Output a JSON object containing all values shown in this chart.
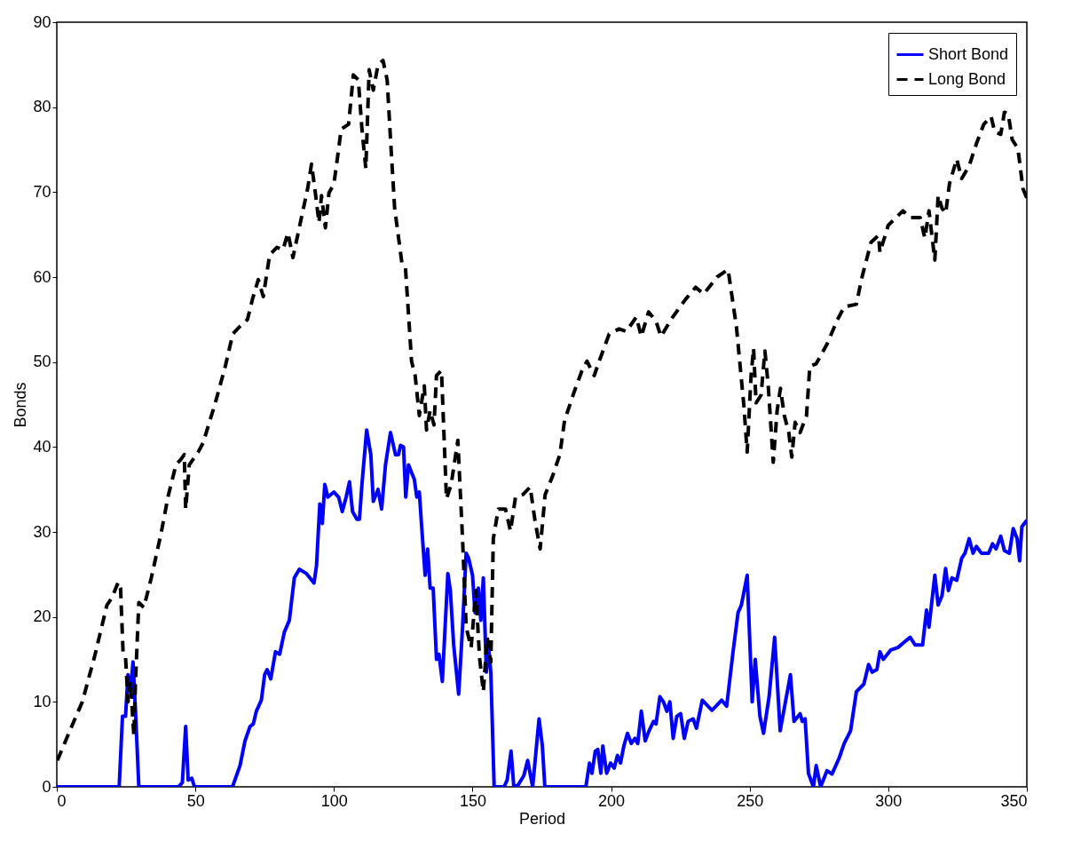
{
  "chart_data": {
    "type": "line",
    "xlabel": "Period",
    "ylabel": "Bonds",
    "xlim": [
      0,
      350
    ],
    "xticks": [
      0,
      50,
      100,
      150,
      200,
      250,
      300,
      350
    ],
    "ylim": [
      0,
      90
    ],
    "yticks": [
      0,
      10,
      20,
      30,
      40,
      50,
      60,
      70,
      80,
      90
    ],
    "grid": false,
    "legend": "top right",
    "series": [
      {
        "name": "Short Bond",
        "color": "#0000ff",
        "line_style": "solid",
        "x": [
          0,
          22.5,
          23.7,
          24.8,
          25.7,
          26.6,
          27.5,
          28.4,
          29.6,
          43.9,
          45.3,
          46.5,
          47.4,
          48.7,
          49.7,
          63.4,
          66.1,
          67.9,
          69.7,
          70.9,
          72,
          73.8,
          75,
          75.9,
          77.2,
          78.9,
          80.4,
          82.1,
          83.9,
          85.7,
          87.5,
          90.1,
          92.8,
          93.7,
          94.9,
          95.8,
          96.7,
          97.8,
          100,
          101.7,
          103,
          104.4,
          105.6,
          106.7,
          108.3,
          109.2,
          110.1,
          111.8,
          113.3,
          114.2,
          115.9,
          117.2,
          118.6,
          120.4,
          122.2,
          123.3,
          124,
          125.1,
          125.9,
          126.9,
          129,
          129.9,
          130.8,
          131.7,
          132.9,
          133.8,
          134.7,
          135.8,
          137,
          137.9,
          139.1,
          141.1,
          142,
          143.2,
          145,
          146.4,
          147.7,
          148.6,
          150,
          150.9,
          152.1,
          153,
          153.9,
          155,
          155.7,
          156.6,
          157.8,
          161.4,
          162.5,
          163.9,
          164.9,
          166.4,
          168.5,
          169.9,
          171.7,
          174,
          175.2,
          176.1,
          190.9,
          192.2,
          193.1,
          194.3,
          195.2,
          196.3,
          197,
          198.4,
          199.8,
          201.1,
          202.3,
          203.4,
          204.6,
          205.9,
          207.3,
          208.6,
          209.6,
          210.9,
          212.3,
          213.7,
          215.3,
          216.2,
          217.6,
          218.9,
          220.1,
          221.2,
          222.4,
          223.7,
          225.1,
          226.4,
          227.8,
          229.6,
          230.8,
          232.9,
          236.4,
          239.9,
          241.7,
          244,
          245.8,
          247,
          249.1,
          250.9,
          252,
          253.7,
          255,
          257,
          259,
          261,
          264.7,
          266,
          268.2,
          269,
          270,
          271.2,
          273,
          274,
          275.6,
          277.9,
          279.7,
          282.3,
          284.1,
          286.4,
          288.5,
          291.2,
          292.9,
          294.2,
          295.9,
          297,
          298.2,
          300.9,
          303.5,
          305.3,
          307.9,
          309.7,
          312.4,
          313.8,
          314.7,
          316.8,
          318,
          319.4,
          320.7,
          321.7,
          323,
          324.7,
          326.5,
          327.7,
          329.2,
          330.6,
          331.8,
          333.6,
          336.2,
          337.6,
          338.9,
          340.6,
          341.9,
          343.7,
          345.1,
          346.5,
          347.4,
          348.2,
          350
        ],
        "values": [
          0,
          0,
          8.3,
          8.3,
          13.2,
          11.2,
          14.7,
          8.9,
          0,
          0,
          0.5,
          7.1,
          0.8,
          1,
          0,
          0,
          2.5,
          5.4,
          7.1,
          7.4,
          8.9,
          10.2,
          13.2,
          13.8,
          12.7,
          15.9,
          15.6,
          18.2,
          19.6,
          24.6,
          25.6,
          25.1,
          24,
          26,
          33.3,
          31,
          35.6,
          34.1,
          34.7,
          34.1,
          32.4,
          34.1,
          35.9,
          32.4,
          31.5,
          31.5,
          35.6,
          42,
          39.1,
          33.6,
          35,
          32.7,
          37.9,
          41.7,
          39.1,
          39.1,
          40.2,
          40,
          34.1,
          37.9,
          36.2,
          34.1,
          34.7,
          30.4,
          24.9,
          28,
          23.4,
          23.4,
          15,
          15.6,
          12.4,
          25.1,
          23.1,
          16.7,
          10.9,
          18.8,
          27.5,
          26.9,
          24.9,
          20.5,
          23.4,
          19.6,
          24.6,
          13.5,
          16.7,
          13.5,
          0,
          0,
          0.8,
          4.2,
          0,
          0.2,
          1.3,
          3.1,
          0,
          8,
          4.8,
          0,
          0,
          2.8,
          1.6,
          4.2,
          4.4,
          1.6,
          4.8,
          1.6,
          2.8,
          2.2,
          3.7,
          2.8,
          4.8,
          6.3,
          5.1,
          5.7,
          5.1,
          8.9,
          5.4,
          6.6,
          7.7,
          7.4,
          10.6,
          10,
          8.9,
          10,
          5.7,
          8.3,
          8.6,
          5.7,
          7.7,
          8,
          6.9,
          10.2,
          9,
          10.2,
          9.5,
          15.9,
          20.5,
          21.4,
          24.9,
          10,
          15,
          8.3,
          6.3,
          10.6,
          17.6,
          6.6,
          13.2,
          7.7,
          8.6,
          7.7,
          8,
          1.6,
          0,
          2.5,
          0,
          1.9,
          1.5,
          3.4,
          5.1,
          6.6,
          11.2,
          12.1,
          14.4,
          13.5,
          13.8,
          15.9,
          15,
          16.1,
          16.4,
          16.9,
          17.6,
          16.7,
          16.7,
          20.8,
          18.8,
          24.9,
          21.4,
          22.5,
          25.7,
          23.1,
          24.6,
          24.3,
          26.9,
          27.5,
          29.2,
          27.5,
          28.3,
          27.5,
          27.5,
          28.6,
          28,
          29.5,
          27.8,
          27.5,
          30.4,
          29.2,
          26.6,
          30.6,
          31.4
        ]
      },
      {
        "name": "Long Bond",
        "color": "#000000",
        "line_style": "dashed",
        "x": [
          0.2,
          4.7,
          9.2,
          13.6,
          18.1,
          19.8,
          22.2,
          23,
          23.9,
          24.8,
          25.7,
          26.6,
          27.8,
          28.4,
          29.6,
          31.4,
          34.1,
          37.6,
          40.3,
          43,
          44.7,
          46,
          46.5,
          47.8,
          51,
          52.8,
          57.2,
          60.8,
          63.5,
          66.1,
          68.8,
          70.6,
          72.7,
          74.5,
          76.8,
          79.4,
          81.6,
          83.4,
          85.2,
          88.4,
          90.5,
          91.9,
          93.3,
          94.6,
          95.5,
          96.9,
          98.2,
          100,
          101.7,
          102.6,
          105.3,
          107,
          108.8,
          110.1,
          111.5,
          112.7,
          114.2,
          115.9,
          117.7,
          119.2,
          120.5,
          121.9,
          124.5,
          125.8,
          128,
          129.3,
          130.8,
          132.6,
          133.4,
          134.7,
          136.1,
          137,
          138.8,
          140.6,
          142.3,
          144.7,
          146.4,
          147.7,
          149.5,
          151.2,
          152.5,
          153.9,
          155.3,
          156.6,
          157.5,
          159.3,
          161.9,
          163.7,
          165.5,
          168.2,
          170.8,
          172.6,
          174.4,
          176.2,
          178.8,
          181.5,
          183.2,
          186.8,
          189.5,
          191.3,
          193.9,
          195.7,
          199.3,
          202.9,
          205.5,
          209.1,
          210.9,
          213.5,
          216.2,
          218,
          221.6,
          226.9,
          230.5,
          233.4,
          238.2,
          242.2,
          245.2,
          247.9,
          249.1,
          250.5,
          251.4,
          252.3,
          254.1,
          255.5,
          256.7,
          258.5,
          259.9,
          261.1,
          262.5,
          264.1,
          265.2,
          266.4,
          268.2,
          270.5,
          271.7,
          274,
          277.9,
          281.4,
          284.1,
          288.5,
          290.3,
          293.8,
          296.5,
          297,
          300,
          305.3,
          307.9,
          311.5,
          313.2,
          314.7,
          316.8,
          318,
          319.4,
          320.7,
          322.1,
          324.7,
          326.5,
          329.2,
          331.8,
          334.5,
          337.1,
          338.4,
          340.6,
          341.9,
          343.3,
          344.7,
          346.8,
          348.6,
          350
        ],
        "values": [
          3.1,
          6.6,
          10,
          15.3,
          21.4,
          22.2,
          24.1,
          23.4,
          15.9,
          15.3,
          10,
          12.4,
          6,
          12.4,
          21.7,
          21.1,
          24.6,
          29.8,
          34.4,
          37.9,
          38.5,
          39.1,
          32.7,
          37.9,
          39.4,
          40.5,
          45.2,
          49.5,
          53.3,
          54.2,
          55,
          57.4,
          59.7,
          57.7,
          62.6,
          63.5,
          63.2,
          65.2,
          62.3,
          67.2,
          70.4,
          73.3,
          69.9,
          66.4,
          69.6,
          65.8,
          69.9,
          71,
          75.1,
          77.4,
          78,
          83.8,
          83.2,
          77.4,
          72.8,
          84.4,
          82,
          85,
          85.5,
          83.2,
          75.7,
          68.1,
          61.7,
          61.1,
          50.1,
          48.4,
          43.7,
          47.2,
          42,
          44.3,
          42.6,
          48.4,
          49,
          33.9,
          35.6,
          40.8,
          29.2,
          18.8,
          16.4,
          23.1,
          15.3,
          11.2,
          17.6,
          14.7,
          29.2,
          32.7,
          32.7,
          30.1,
          34.1,
          34.4,
          35.3,
          31.2,
          28,
          34.4,
          36.5,
          39.1,
          43.1,
          46.6,
          49,
          50.1,
          48.4,
          50.1,
          53.3,
          53.9,
          53.6,
          55.3,
          53,
          55.9,
          54.8,
          53,
          55,
          57.4,
          58.8,
          58,
          60,
          60.9,
          54.2,
          44.9,
          39.4,
          48.4,
          51.6,
          45.2,
          46.1,
          51.3,
          47.2,
          38.2,
          44.3,
          46.9,
          43.7,
          41.7,
          38.8,
          42.9,
          41.7,
          43.7,
          49.5,
          49.8,
          52.1,
          54.8,
          56.5,
          56.8,
          59.7,
          64.1,
          64.9,
          62.9,
          66.1,
          67.8,
          67,
          67,
          64.6,
          67.8,
          62,
          69.6,
          68.1,
          67.5,
          71,
          73.9,
          71.6,
          73.1,
          75.7,
          78,
          78.9,
          77.1,
          76.8,
          79.4,
          79.2,
          76.2,
          75.1,
          70.4,
          69.3
        ]
      }
    ]
  }
}
